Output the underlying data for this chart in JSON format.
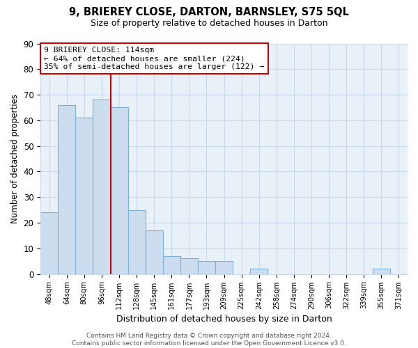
{
  "title": "9, BRIEREY CLOSE, DARTON, BARNSLEY, S75 5QL",
  "subtitle": "Size of property relative to detached houses in Darton",
  "xlabel": "Distribution of detached houses by size in Darton",
  "ylabel": "Number of detached properties",
  "categories": [
    "48sqm",
    "64sqm",
    "80sqm",
    "96sqm",
    "112sqm",
    "128sqm",
    "145sqm",
    "161sqm",
    "177sqm",
    "193sqm",
    "209sqm",
    "225sqm",
    "242sqm",
    "258sqm",
    "274sqm",
    "290sqm",
    "306sqm",
    "322sqm",
    "339sqm",
    "355sqm",
    "371sqm"
  ],
  "values": [
    24,
    66,
    61,
    68,
    65,
    25,
    17,
    7,
    6,
    5,
    5,
    0,
    2,
    0,
    0,
    0,
    0,
    0,
    0,
    2,
    0
  ],
  "bar_color": "#ccddf0",
  "bar_edge_color": "#7bafd4",
  "property_line_x": 4,
  "property_line_color": "#cc0000",
  "annotation_line1": "9 BRIEREY CLOSE: 114sqm",
  "annotation_line2": "← 64% of detached houses are smaller (224)",
  "annotation_line3": "35% of semi-detached houses are larger (122) →",
  "annotation_box_color": "#ffffff",
  "annotation_box_edge_color": "#cc0000",
  "ylim": [
    0,
    90
  ],
  "yticks": [
    0,
    10,
    20,
    30,
    40,
    50,
    60,
    70,
    80,
    90
  ],
  "footer_text": "Contains HM Land Registry data © Crown copyright and database right 2024.\nContains public sector information licensed under the Open Government Licence v3.0.",
  "grid_color": "#c8d8ee",
  "bg_color": "#e8f0f8",
  "title_fontsize": 10.5,
  "subtitle_fontsize": 9
}
